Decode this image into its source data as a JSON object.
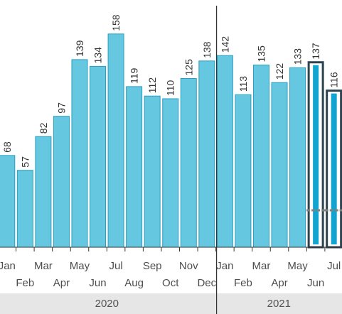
{
  "chart_data": {
    "type": "bar",
    "categories": [
      "Jan",
      "Feb",
      "Mar",
      "Apr",
      "May",
      "Jun",
      "Jul",
      "Aug",
      "Sep",
      "Oct",
      "Nov",
      "Dec",
      "Jan",
      "Feb",
      "Mar",
      "Apr",
      "May",
      "Jun",
      "Jul"
    ],
    "years": [
      {
        "label": "2020",
        "months": 12
      },
      {
        "label": "2021",
        "months": 7
      }
    ],
    "values": [
      68,
      57,
      82,
      97,
      139,
      134,
      158,
      119,
      112,
      110,
      125,
      138,
      142,
      113,
      135,
      122,
      133,
      137,
      116
    ],
    "highlighted": [
      "Jun 2021",
      "Jul 2021"
    ],
    "ylim": [
      0,
      165
    ],
    "grid": false,
    "colors": {
      "bar": "#65c8e0",
      "bar_border": "#2a9fc0",
      "highlight_fill": "#12a4d0",
      "highlight_border": "#2d4450",
      "year_band": "#e6e6e6"
    },
    "xlabel": "",
    "ylabel": "",
    "title": ""
  }
}
